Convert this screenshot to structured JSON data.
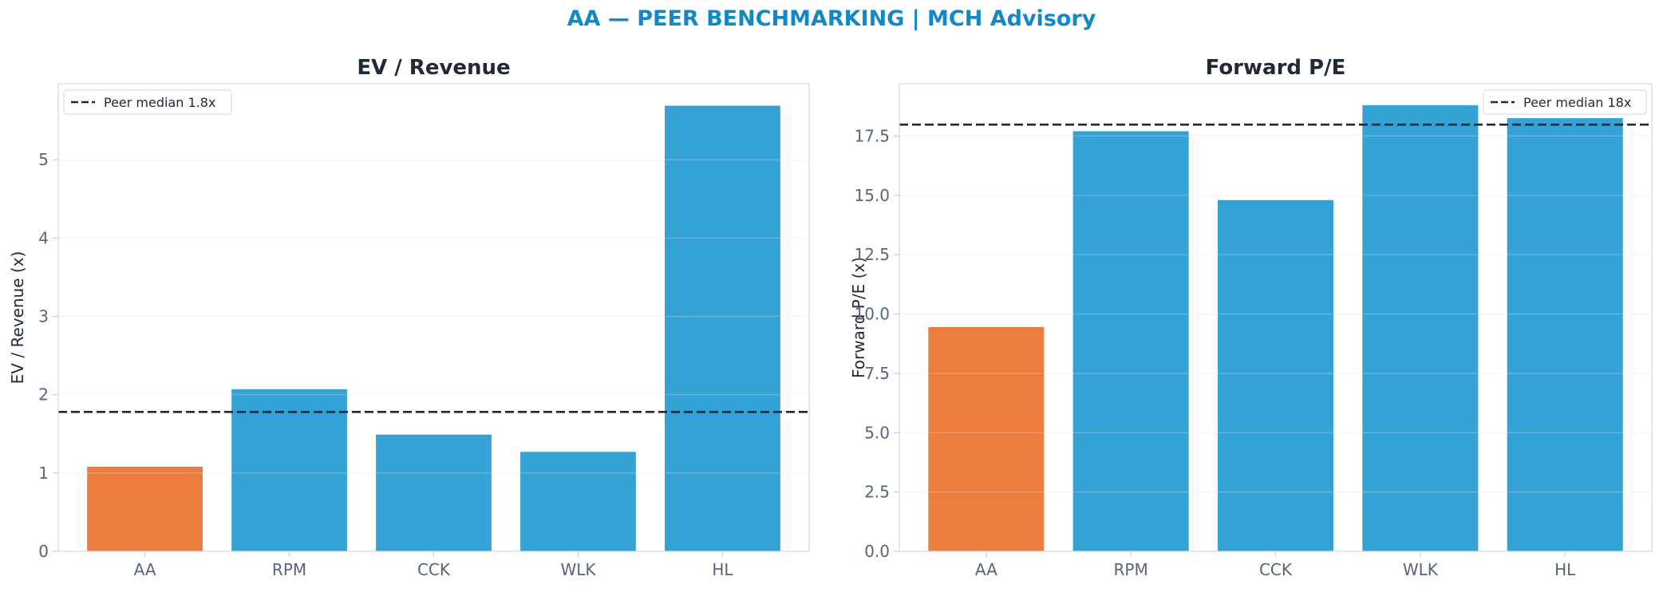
{
  "suptitle": "AA — PEER BENCHMARKING | MCH Advisory",
  "colors": {
    "highlight": "#ed7d3d",
    "peer": "#34a2d4",
    "median": "#1e2a38",
    "title": "#1189c4"
  },
  "chart_data": [
    {
      "type": "bar",
      "title": "EV / Revenue",
      "xlabel": "",
      "ylabel": "EV / Revenue (x)",
      "categories": [
        "AA",
        "RPM",
        "CCK",
        "WLK",
        "HL"
      ],
      "values": [
        1.08,
        2.07,
        1.49,
        1.27,
        5.69
      ],
      "highlight": "AA",
      "ylim": [
        0,
        5.97
      ],
      "yticks": [
        0,
        1,
        2,
        3,
        4,
        5
      ],
      "ytick_labels": [
        "0",
        "1",
        "2",
        "3",
        "4",
        "5"
      ],
      "reference_line": {
        "value": 1.78,
        "label": "Peer median 1.8x"
      },
      "legend": "top-left",
      "grid": true
    },
    {
      "type": "bar",
      "title": "Forward P/E",
      "xlabel": "",
      "ylabel": "Forward P/E (x)",
      "categories": [
        "AA",
        "RPM",
        "CCK",
        "WLK",
        "HL"
      ],
      "values": [
        9.45,
        17.7,
        14.8,
        18.8,
        18.25
      ],
      "highlight": "AA",
      "ylim": [
        0,
        19.7
      ],
      "yticks": [
        0,
        2.5,
        5,
        7.5,
        10,
        12.5,
        15,
        17.5
      ],
      "ytick_labels": [
        "0.0",
        "2.5",
        "5.0",
        "7.5",
        "10.0",
        "12.5",
        "15.0",
        "17.5"
      ],
      "reference_line": {
        "value": 17.98,
        "label": "Peer median 18x"
      },
      "legend": "top-right",
      "grid": true
    }
  ]
}
